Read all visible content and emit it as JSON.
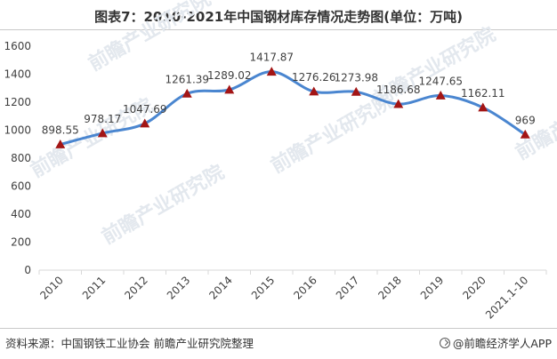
{
  "title": "图表7：2010-2021年中国钢材库存情况走势图(单位：万吨)",
  "source": "资料来源：中国钢铁工业协会 前瞻产业研究院整理",
  "brand": "@前瞻经济学人APP",
  "watermark": "前瞻产业研究院",
  "colors": {
    "line": "#4a86d0",
    "marker": "#a31515",
    "axis": "#d9d9d9"
  },
  "chart_data": {
    "type": "line",
    "categories": [
      "2010",
      "2011",
      "2012",
      "2013",
      "2014",
      "2015",
      "2016",
      "2017",
      "2018",
      "2019",
      "2020",
      "2021.1-10"
    ],
    "values": [
      898.55,
      978.17,
      1047.69,
      1261.39,
      1289.02,
      1417.87,
      1276.26,
      1273.98,
      1186.68,
      1247.65,
      1162.11,
      969
    ],
    "labels": [
      "898.55",
      "978.17",
      "1047.69",
      "1261.39",
      "1289.02",
      "1417.87",
      "1276.26",
      "1273.98",
      "1186.68",
      "1247.65",
      "1162.11",
      "969"
    ],
    "yticks": [
      "0",
      "200",
      "400",
      "600",
      "800",
      "1000",
      "1200",
      "1400",
      "1600"
    ],
    "ylim": [
      0,
      1600
    ],
    "grid": false,
    "smooth": true,
    "marker": "triangle"
  }
}
